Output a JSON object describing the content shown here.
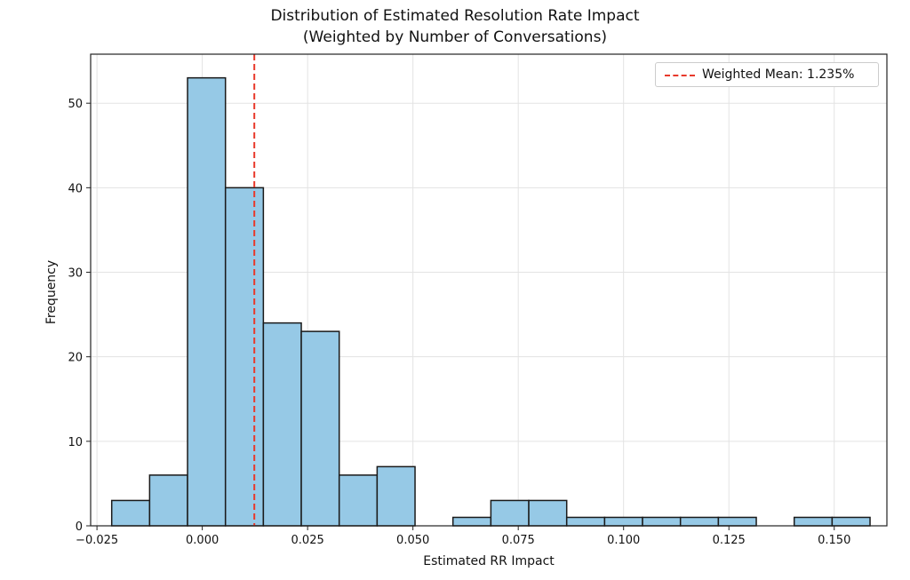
{
  "chart_data": {
    "type": "bar",
    "title_line1": "Distribution of Estimated Resolution Rate Impact",
    "title_line2": "(Weighted by Number of Conversations)",
    "xlabel": "Estimated RR Impact",
    "ylabel": "Frequency",
    "xlim": [
      -0.0265,
      0.1625
    ],
    "ylim": [
      0,
      55.8
    ],
    "x_ticks": [
      -0.025,
      0.0,
      0.025,
      0.05,
      0.075,
      0.1,
      0.125,
      0.15
    ],
    "x_tick_labels": [
      "−0.025",
      "0.000",
      "0.025",
      "0.050",
      "0.075",
      "0.100",
      "0.125",
      "0.150"
    ],
    "y_ticks": [
      0,
      10,
      20,
      30,
      40,
      50
    ],
    "y_tick_labels": [
      "0",
      "10",
      "20",
      "30",
      "40",
      "50"
    ],
    "grid": true,
    "bin_edges": [
      -0.0215,
      -0.0125,
      -0.0035,
      0.0055,
      0.0145,
      0.0235,
      0.0325,
      0.0415,
      0.0505,
      0.0595,
      0.0685,
      0.0775,
      0.0865,
      0.0955,
      0.1045,
      0.1135,
      0.1225,
      0.1315,
      0.1405,
      0.1495,
      0.1585
    ],
    "values": [
      3,
      6,
      53,
      40,
      24,
      23,
      6,
      7,
      0,
      1,
      3,
      3,
      1,
      1,
      1,
      1,
      1,
      0,
      1,
      1
    ],
    "bar_color": "#96c9e6",
    "bar_edge_color": "#1a1a1a",
    "mean_line": {
      "x": 0.01235,
      "color": "#e8392b",
      "label": "Weighted Mean: 1.235%"
    },
    "legend_position": "top-right"
  }
}
